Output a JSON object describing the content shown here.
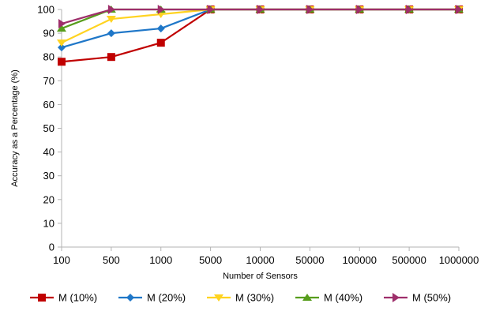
{
  "chart_data": {
    "type": "line",
    "title": "",
    "xlabel": "Number of Sensors",
    "ylabel": "Accuracy as a Percentage (%)",
    "categories": [
      "100",
      "500",
      "1000",
      "5000",
      "10000",
      "50000",
      "100000",
      "500000",
      "1000000"
    ],
    "ylim": [
      0,
      100
    ],
    "yticks": [
      0,
      10,
      20,
      30,
      40,
      50,
      60,
      70,
      80,
      90,
      100
    ],
    "grid": false,
    "legend_position": "bottom",
    "series": [
      {
        "name": "M (10%)",
        "color": "#c00000",
        "marker": "square",
        "values": [
          78,
          80,
          86,
          100,
          100,
          100,
          100,
          100,
          100
        ]
      },
      {
        "name": "M (20%)",
        "color": "#1f77c8",
        "marker": "diamond",
        "values": [
          84,
          90,
          92,
          100,
          100,
          100,
          100,
          100,
          100
        ]
      },
      {
        "name": "M (30%)",
        "color": "#ffd320",
        "marker": "triangle-down",
        "values": [
          86,
          96,
          98,
          100,
          100,
          100,
          100,
          100,
          100
        ]
      },
      {
        "name": "M (40%)",
        "color": "#579d1c",
        "marker": "triangle-up",
        "values": [
          92,
          100,
          100,
          100,
          100,
          100,
          100,
          100,
          100
        ]
      },
      {
        "name": "M (50%)",
        "color": "#9e2f6b",
        "marker": "triangle-right",
        "values": [
          94,
          100,
          100,
          100,
          100,
          100,
          100,
          100,
          100
        ]
      }
    ]
  }
}
